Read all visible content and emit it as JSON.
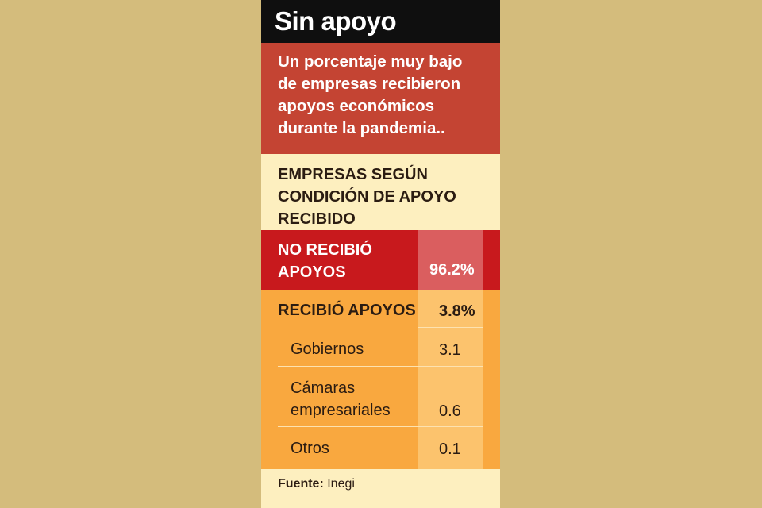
{
  "title": "Sin apoyo",
  "subtitle_lines": [
    "Un porcentaje muy bajo",
    "de empresas recibieron",
    "apoyos económicos",
    "durante la pandemia.."
  ],
  "section_heading_lines": [
    "EMPRESAS SEGÚN",
    "CONDICIÓN DE APOYO",
    "RECIBIDO"
  ],
  "rows": {
    "no_apoyo": {
      "label_lines": [
        "NO RECIBIÓ",
        "APOYOS"
      ],
      "value": "96.2%"
    },
    "recibio": {
      "label": "RECIBIÓ APOYOS",
      "value": "3.8%"
    },
    "gobiernos": {
      "label": "Gobiernos",
      "value": "3.1"
    },
    "camaras": {
      "label_lines": [
        "Cámaras",
        "empresariales"
      ],
      "value": "0.6"
    },
    "otros": {
      "label": "Otros",
      "value": "0.1"
    }
  },
  "source": {
    "label": "Fuente:",
    "value": "Inegi"
  },
  "colors": {
    "background": "#d4bc7c",
    "title_bar": "#0f0f0f",
    "subtitle_bg": "#c44433",
    "panel": "#fdefbf",
    "red_row": "#c8191d",
    "red_value_cell": "#da5e5f",
    "orange_row": "#f9a83f",
    "orange_value_cell": "#fcc36d"
  }
}
